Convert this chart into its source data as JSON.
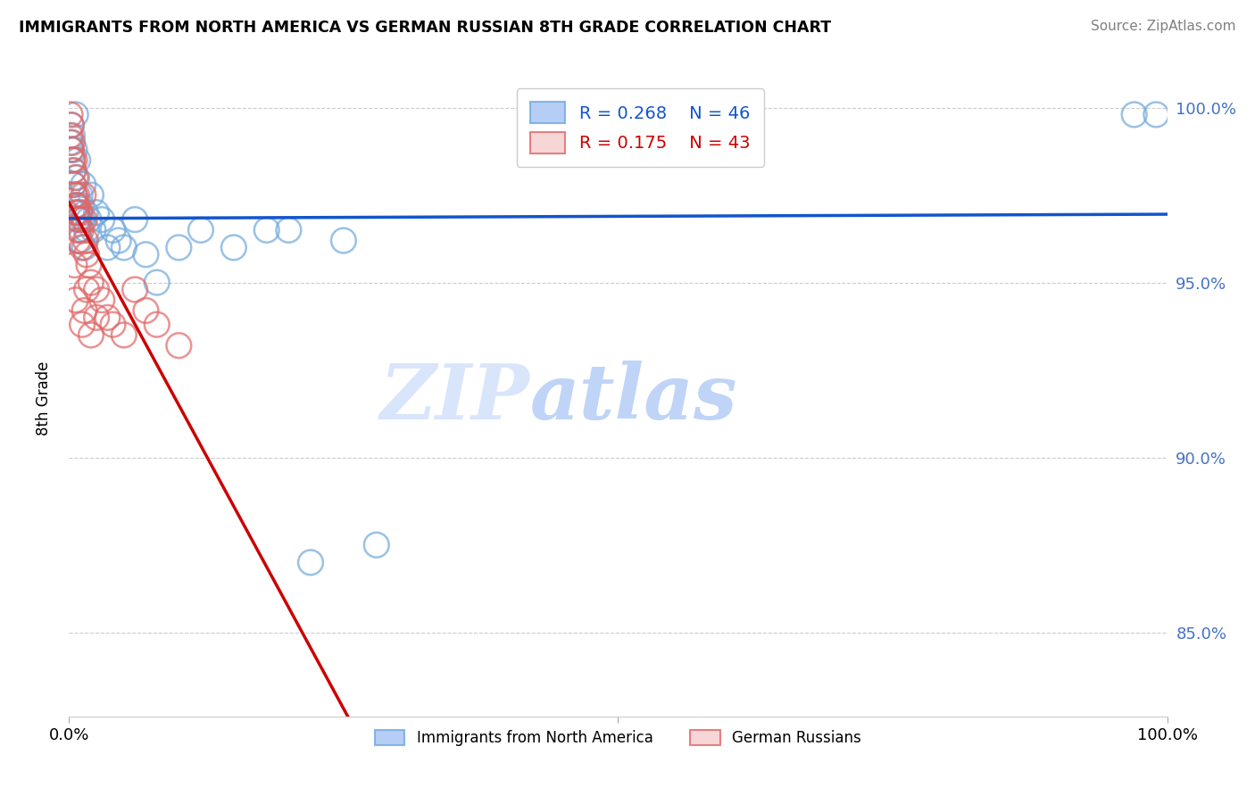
{
  "title": "IMMIGRANTS FROM NORTH AMERICA VS GERMAN RUSSIAN 8TH GRADE CORRELATION CHART",
  "source": "Source: ZipAtlas.com",
  "ylabel": "8th Grade",
  "xlim": [
    0.0,
    1.0
  ],
  "ylim": [
    0.826,
    1.008
  ],
  "blue_R": 0.268,
  "blue_N": 46,
  "pink_R": 0.175,
  "pink_N": 43,
  "blue_color": "#a4c2f4",
  "blue_edge_color": "#6fa8dc",
  "pink_color": "#f4cccc",
  "pink_edge_color": "#e06666",
  "blue_line_color": "#1155cc",
  "pink_line_color": "#cc0000",
  "ytick_color": "#4472c4",
  "legend_label_blue": "Immigrants from North America",
  "legend_label_pink": "German Russians",
  "blue_x": [
    0.001,
    0.002,
    0.002,
    0.003,
    0.003,
    0.004,
    0.004,
    0.005,
    0.005,
    0.006,
    0.006,
    0.007,
    0.007,
    0.008,
    0.008,
    0.009,
    0.01,
    0.01,
    0.011,
    0.012,
    0.013,
    0.014,
    0.015,
    0.016,
    0.018,
    0.02,
    0.022,
    0.025,
    0.03,
    0.035,
    0.04,
    0.045,
    0.05,
    0.06,
    0.07,
    0.08,
    0.1,
    0.12,
    0.15,
    0.18,
    0.2,
    0.22,
    0.25,
    0.28,
    0.97,
    0.99
  ],
  "blue_y": [
    0.99,
    0.988,
    0.995,
    0.985,
    0.992,
    0.978,
    0.982,
    0.975,
    0.988,
    0.972,
    0.998,
    0.98,
    0.97,
    0.985,
    0.968,
    0.965,
    0.975,
    0.962,
    0.972,
    0.968,
    0.978,
    0.96,
    0.97,
    0.965,
    0.968,
    0.975,
    0.965,
    0.97,
    0.968,
    0.96,
    0.965,
    0.962,
    0.96,
    0.968,
    0.958,
    0.95,
    0.96,
    0.965,
    0.96,
    0.965,
    0.965,
    0.87,
    0.962,
    0.875,
    0.998,
    0.998
  ],
  "pink_x": [
    0.001,
    0.001,
    0.002,
    0.002,
    0.003,
    0.003,
    0.004,
    0.004,
    0.005,
    0.005,
    0.006,
    0.006,
    0.007,
    0.007,
    0.008,
    0.008,
    0.009,
    0.01,
    0.011,
    0.012,
    0.013,
    0.014,
    0.015,
    0.016,
    0.018,
    0.02,
    0.025,
    0.03,
    0.035,
    0.04,
    0.05,
    0.06,
    0.07,
    0.08,
    0.1,
    0.012,
    0.014,
    0.016,
    0.02,
    0.025,
    0.005,
    0.006,
    0.008
  ],
  "pink_y": [
    0.998,
    0.992,
    0.995,
    0.988,
    0.99,
    0.985,
    0.982,
    0.978,
    0.975,
    0.985,
    0.972,
    0.98,
    0.97,
    0.975,
    0.965,
    0.972,
    0.968,
    0.97,
    0.965,
    0.96,
    0.975,
    0.968,
    0.962,
    0.958,
    0.955,
    0.95,
    0.948,
    0.945,
    0.94,
    0.938,
    0.935,
    0.948,
    0.942,
    0.938,
    0.932,
    0.938,
    0.942,
    0.948,
    0.935,
    0.94,
    0.955,
    0.945,
    0.962
  ],
  "watermark_zip": "ZIP",
  "watermark_atlas": "atlas",
  "grid_color": "#cccccc"
}
